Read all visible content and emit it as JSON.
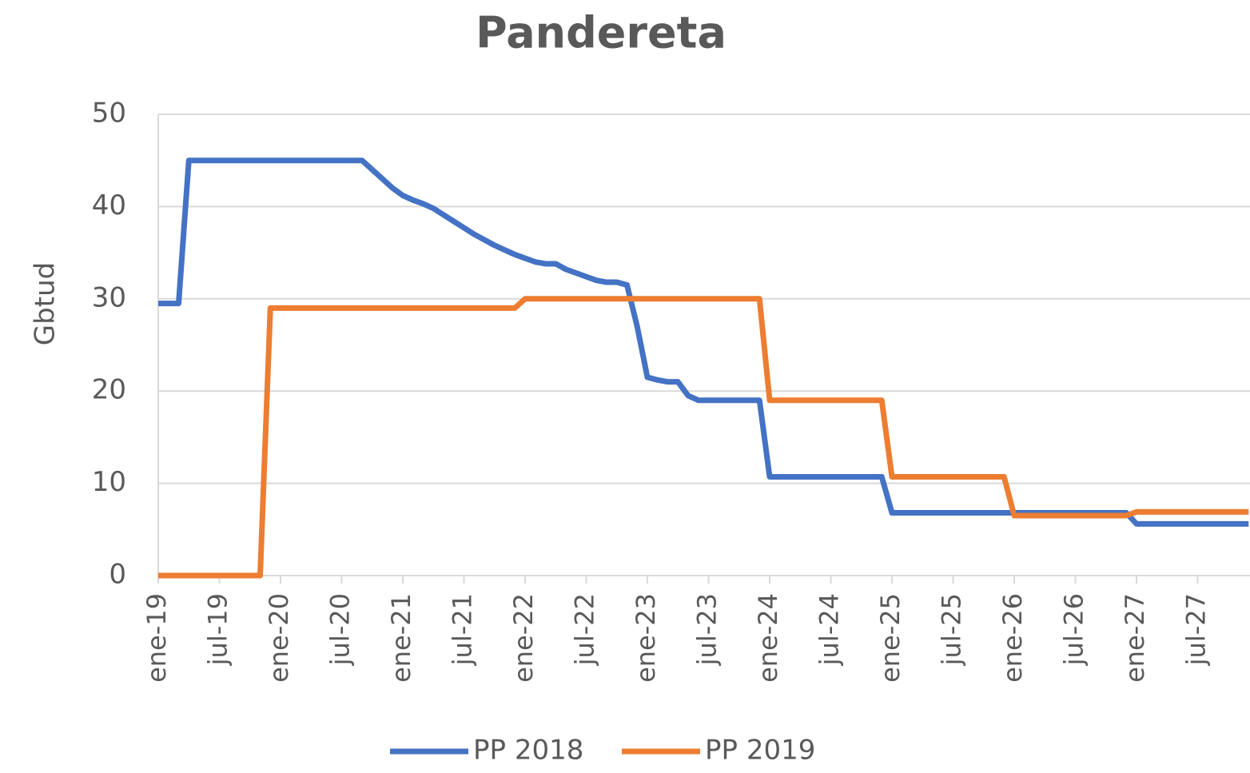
{
  "chart_data": {
    "type": "line",
    "title": "Pandereta",
    "y_label": "Gbtud",
    "categories": [
      "ene-19",
      null,
      null,
      null,
      null,
      null,
      "jul-19",
      null,
      null,
      null,
      null,
      null,
      "ene-20",
      null,
      null,
      null,
      null,
      null,
      "jul-20",
      null,
      null,
      null,
      null,
      null,
      "ene-21",
      null,
      null,
      null,
      null,
      null,
      "jul-21",
      null,
      null,
      null,
      null,
      null,
      "ene-22",
      null,
      null,
      null,
      null,
      null,
      "jul-22",
      null,
      null,
      null,
      null,
      null,
      "ene-23",
      null,
      null,
      null,
      null,
      null,
      "jul-23",
      null,
      null,
      null,
      null,
      null,
      "ene-24",
      null,
      null,
      null,
      null,
      null,
      "jul-24",
      null,
      null,
      null,
      null,
      null,
      "ene-25",
      null,
      null,
      null,
      null,
      null,
      "jul-25",
      null,
      null,
      null,
      null,
      null,
      "ene-26",
      null,
      null,
      null,
      null,
      null,
      "jul-26",
      null,
      null,
      null,
      null,
      null,
      "ene-27",
      null,
      null,
      null,
      null,
      null,
      "jul-27",
      null,
      null,
      null,
      null,
      null
    ],
    "series": [
      {
        "name": "PP 2018",
        "color": "#4472c4",
        "values": [
          29.5,
          29.5,
          29.5,
          45,
          45,
          45,
          45,
          45,
          45,
          45,
          45,
          45,
          45,
          45,
          45,
          45,
          45,
          45,
          45,
          45,
          45,
          44,
          43,
          42,
          41.2,
          40.7,
          40.3,
          39.8,
          39.1,
          38.4,
          37.7,
          37,
          36.4,
          35.8,
          35.3,
          34.8,
          34.4,
          34,
          33.8,
          33.8,
          33.2,
          32.8,
          32.4,
          32,
          31.8,
          31.8,
          31.5,
          27,
          21.5,
          21.2,
          21,
          21,
          19.5,
          19,
          19,
          19,
          19,
          19,
          19,
          19,
          10.7,
          10.7,
          10.7,
          10.7,
          10.7,
          10.7,
          10.7,
          10.7,
          10.7,
          10.7,
          10.7,
          10.7,
          6.8,
          6.8,
          6.8,
          6.8,
          6.8,
          6.8,
          6.8,
          6.8,
          6.8,
          6.8,
          6.8,
          6.8,
          6.8,
          6.8,
          6.8,
          6.8,
          6.8,
          6.8,
          6.8,
          6.8,
          6.8,
          6.8,
          6.8,
          6.8,
          5.6,
          5.6,
          5.6,
          5.6,
          5.6,
          5.6,
          5.6,
          5.6,
          5.6,
          5.6,
          5.6,
          5.6
        ]
      },
      {
        "name": "PP 2019",
        "color": "#ed7d31",
        "values": [
          0,
          0,
          0,
          0,
          0,
          0,
          0,
          0,
          0,
          0,
          0,
          29,
          29,
          29,
          29,
          29,
          29,
          29,
          29,
          29,
          29,
          29,
          29,
          29,
          29,
          29,
          29,
          29,
          29,
          29,
          29,
          29,
          29,
          29,
          29,
          29,
          30,
          30,
          30,
          30,
          30,
          30,
          30,
          30,
          30,
          30,
          30,
          30,
          30,
          30,
          30,
          30,
          30,
          30,
          30,
          30,
          30,
          30,
          30,
          30,
          19,
          19,
          19,
          19,
          19,
          19,
          19,
          19,
          19,
          19,
          19,
          19,
          10.7,
          10.7,
          10.7,
          10.7,
          10.7,
          10.7,
          10.7,
          10.7,
          10.7,
          10.7,
          10.7,
          10.7,
          6.5,
          6.5,
          6.5,
          6.5,
          6.5,
          6.5,
          6.5,
          6.5,
          6.5,
          6.5,
          6.5,
          6.5,
          6.9,
          6.9,
          6.9,
          6.9,
          6.9,
          6.9,
          6.9,
          6.9,
          6.9,
          6.9,
          6.9,
          6.9
        ]
      }
    ],
    "ylim": [
      0,
      50
    ],
    "yticks": [
      0,
      10,
      20,
      30,
      40,
      50
    ],
    "grid": true,
    "legend": "bottom"
  }
}
